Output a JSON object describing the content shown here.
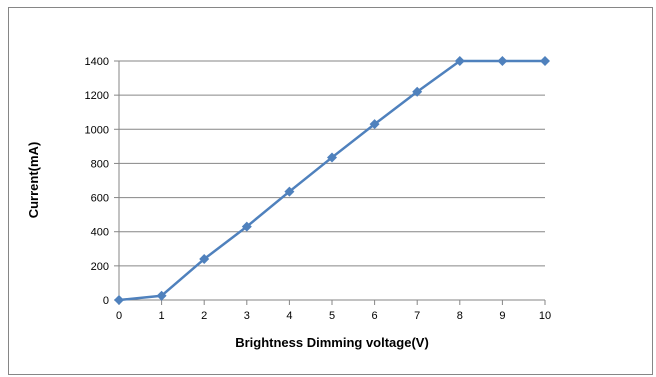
{
  "chart_data": {
    "type": "line",
    "title": "",
    "xlabel": "Brightness Dimming voltage(V)",
    "ylabel": "Current(mA)",
    "x": [
      0,
      1,
      2,
      3,
      4,
      5,
      6,
      7,
      8,
      9,
      10
    ],
    "xlim": [
      0,
      10
    ],
    "ylim": [
      0,
      1400
    ],
    "yticks": [
      0,
      200,
      400,
      600,
      800,
      1000,
      1200,
      1400
    ],
    "xticks": [
      0,
      1,
      2,
      3,
      4,
      5,
      6,
      7,
      8,
      9,
      10
    ],
    "grid": "horizontal",
    "legend": "none",
    "series": [
      {
        "color": "#4F81BD",
        "marker": "diamond",
        "values": [
          0,
          25,
          240,
          430,
          635,
          835,
          1030,
          1220,
          1400,
          1400,
          1400
        ]
      }
    ]
  }
}
